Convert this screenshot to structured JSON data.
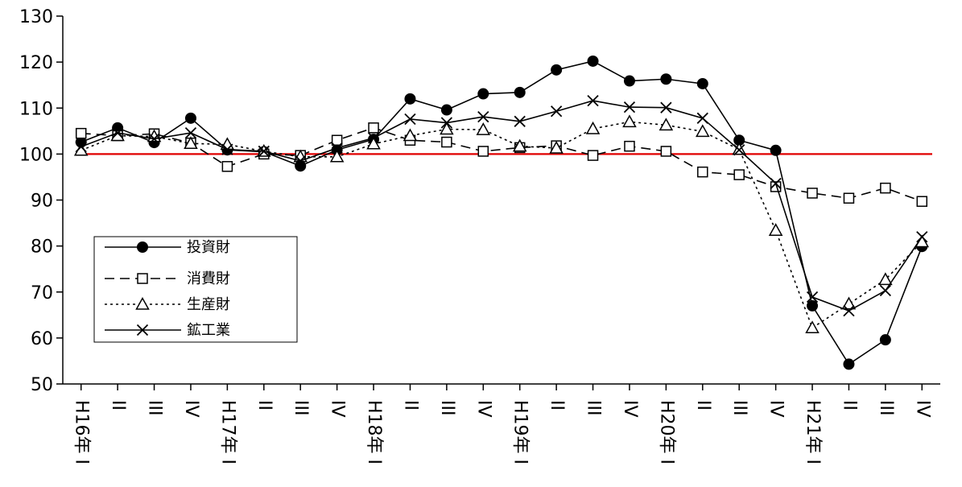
{
  "chart_data": {
    "type": "line",
    "categories": [
      "H16年 I",
      "II",
      "III",
      "IV",
      "H17年 I",
      "II",
      "III",
      "IV",
      "H18年 I",
      "II",
      "III",
      "IV",
      "H19年 I",
      "II",
      "III",
      "IV",
      "H20年 I",
      "II",
      "III",
      "IV",
      "H21年 I",
      "II",
      "III",
      "IV"
    ],
    "ylim": [
      50,
      130
    ],
    "yticks": [
      50,
      60,
      70,
      80,
      90,
      100,
      110,
      120,
      130
    ],
    "reference_line": {
      "y": 100,
      "color": "#e00000"
    },
    "legend_position": "left-lower",
    "grid": false,
    "series": [
      {
        "name": "投資財",
        "marker": "filled-circle",
        "dash": "solid",
        "color": "#000000",
        "values": [
          102.6,
          105.7,
          102.5,
          107.8,
          100.9,
          100.5,
          97.4,
          100.9,
          103.2,
          112.0,
          109.6,
          113.1,
          113.4,
          118.3,
          120.2,
          115.9,
          116.3,
          115.3,
          103.0,
          100.8,
          67.0,
          54.3,
          59.6,
          79.9
        ]
      },
      {
        "name": "消費財",
        "marker": "open-square",
        "dash": "dashed",
        "color": "#000000",
        "values": [
          104.5,
          104.0,
          104.4,
          102.4,
          97.3,
          100.0,
          99.7,
          103.0,
          105.7,
          103.0,
          102.6,
          100.6,
          101.4,
          101.8,
          99.7,
          101.7,
          100.6,
          96.1,
          95.5,
          92.9,
          91.5,
          90.4,
          92.6,
          89.7
        ]
      },
      {
        "name": "生産財",
        "marker": "open-triangle",
        "dash": "dotted",
        "color": "#000000",
        "values": [
          100.8,
          104.0,
          103.8,
          102.3,
          102.1,
          100.6,
          99.4,
          99.4,
          102.2,
          104.0,
          105.4,
          105.3,
          101.7,
          101.3,
          105.5,
          107.0,
          106.3,
          104.9,
          101.0,
          83.4,
          62.2,
          67.4,
          72.7,
          80.9
        ]
      },
      {
        "name": "鉱工業",
        "marker": "x-cross",
        "dash": "solid",
        "color": "#000000",
        "values": [
          101.6,
          104.6,
          103.3,
          104.6,
          101.0,
          100.6,
          98.5,
          101.3,
          103.5,
          107.6,
          106.8,
          108.1,
          107.1,
          109.3,
          111.6,
          110.2,
          110.1,
          107.8,
          100.9,
          93.6,
          68.9,
          65.9,
          70.3,
          82.0
        ]
      }
    ]
  }
}
